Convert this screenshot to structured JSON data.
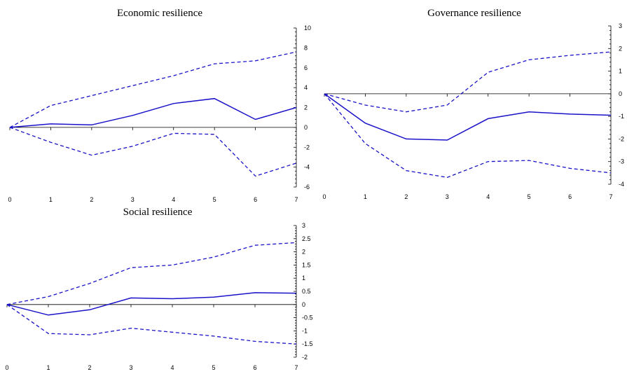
{
  "chart_data": [
    {
      "type": "line",
      "title": "Economic resilience",
      "x": [
        0,
        1,
        2,
        3,
        4,
        5,
        6,
        7
      ],
      "ylim": [
        -6,
        10
      ],
      "yticks": [
        "10",
        "8",
        "6",
        "4",
        "2",
        "0",
        "-2",
        "-4",
        "-6"
      ],
      "xticks": [
        "0",
        "1",
        "2",
        "3",
        "4",
        "5",
        "6",
        "7"
      ],
      "series": [
        {
          "style": "dashed",
          "values": [
            0,
            2.2,
            3.2,
            4.2,
            5.2,
            6.4,
            6.7,
            7.6
          ]
        },
        {
          "style": "solid",
          "values": [
            0,
            0.35,
            0.25,
            1.2,
            2.4,
            2.9,
            0.8,
            2.0
          ]
        },
        {
          "style": "dashed",
          "values": [
            0,
            -1.5,
            -2.8,
            -1.9,
            -0.6,
            -0.7,
            -4.9,
            -3.6
          ]
        }
      ]
    },
    {
      "type": "line",
      "title": "Governance resilience",
      "x": [
        0,
        1,
        2,
        3,
        4,
        5,
        6,
        7
      ],
      "ylim": [
        -4,
        3
      ],
      "yticks": [
        "3",
        "2",
        "1",
        "0",
        "-1",
        "-2",
        "-3",
        "-4"
      ],
      "xticks": [
        "0",
        "1",
        "2",
        "3",
        "4",
        "5",
        "6",
        "7"
      ],
      "series": [
        {
          "style": "dashed",
          "values": [
            0,
            -0.5,
            -0.8,
            -0.5,
            0.95,
            1.5,
            1.7,
            1.85
          ]
        },
        {
          "style": "solid",
          "values": [
            0,
            -1.3,
            -2.0,
            -2.05,
            -1.1,
            -0.8,
            -0.9,
            -0.95
          ]
        },
        {
          "style": "dashed",
          "values": [
            0,
            -2.2,
            -3.4,
            -3.7,
            -3.0,
            -2.95,
            -3.3,
            -3.5
          ]
        }
      ]
    },
    {
      "type": "line",
      "title": "Social resilience",
      "x": [
        0,
        1,
        2,
        3,
        4,
        5,
        6,
        7
      ],
      "ylim": [
        -2,
        3
      ],
      "yticks": [
        "3",
        "2.5",
        "2",
        "1.5",
        "1",
        "0.5",
        "0",
        "-0.5",
        "-1",
        "-1.5",
        "-2"
      ],
      "xticks": [
        "0",
        "1",
        "2",
        "3",
        "4",
        "5",
        "6",
        "7"
      ],
      "series": [
        {
          "style": "dashed",
          "values": [
            0,
            0.3,
            0.8,
            1.4,
            1.5,
            1.8,
            2.25,
            2.35
          ]
        },
        {
          "style": "solid",
          "values": [
            0,
            -0.4,
            -0.2,
            0.25,
            0.22,
            0.28,
            0.45,
            0.43
          ]
        },
        {
          "style": "dashed",
          "values": [
            0,
            -1.1,
            -1.15,
            -0.9,
            -1.05,
            -1.2,
            -1.4,
            -1.5
          ]
        }
      ]
    }
  ]
}
